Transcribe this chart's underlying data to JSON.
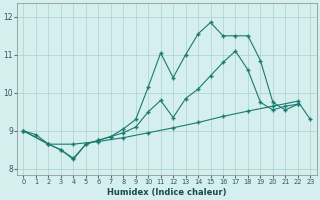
{
  "xlabel": "Humidex (Indice chaleur)",
  "bg_color": "#d5eeee",
  "grid_color": "#aad0d0",
  "line_color": "#1a7a6e",
  "xlim": [
    -0.5,
    23.5
  ],
  "ylim": [
    7.85,
    12.35
  ],
  "yticks": [
    8,
    9,
    10,
    11,
    12
  ],
  "xticks": [
    0,
    1,
    2,
    3,
    4,
    5,
    6,
    7,
    8,
    9,
    10,
    11,
    12,
    13,
    14,
    15,
    16,
    17,
    18,
    19,
    20,
    21,
    22,
    23
  ],
  "line1_x": [
    0,
    1,
    2,
    3,
    4,
    5,
    6,
    7,
    8,
    9,
    10,
    11,
    12,
    13,
    14,
    15,
    16,
    17,
    18,
    19,
    20,
    21,
    22
  ],
  "line1_y": [
    9.0,
    8.9,
    8.65,
    8.5,
    8.25,
    8.65,
    8.75,
    8.85,
    9.05,
    9.3,
    10.15,
    11.05,
    10.4,
    11.0,
    11.55,
    11.85,
    11.5,
    11.5,
    11.5,
    10.85,
    9.75,
    9.55,
    9.7
  ],
  "line2_x": [
    0,
    2,
    3,
    4,
    5,
    6,
    7,
    8,
    9,
    10,
    11,
    12,
    13,
    14,
    15,
    16,
    17,
    18,
    19,
    20,
    21,
    22,
    23
  ],
  "line2_y": [
    9.0,
    8.65,
    8.5,
    8.28,
    8.65,
    8.75,
    8.85,
    8.95,
    9.1,
    9.5,
    9.8,
    9.35,
    9.85,
    10.1,
    10.45,
    10.8,
    11.1,
    10.6,
    9.75,
    9.55,
    9.65,
    9.7,
    null
  ],
  "line3_x": [
    0,
    2,
    4,
    6,
    8,
    10,
    12,
    14,
    16,
    18,
    20,
    22,
    23
  ],
  "line3_y": [
    9.0,
    8.65,
    8.65,
    8.72,
    8.82,
    8.95,
    9.08,
    9.22,
    9.38,
    9.52,
    9.65,
    9.78,
    9.3
  ]
}
